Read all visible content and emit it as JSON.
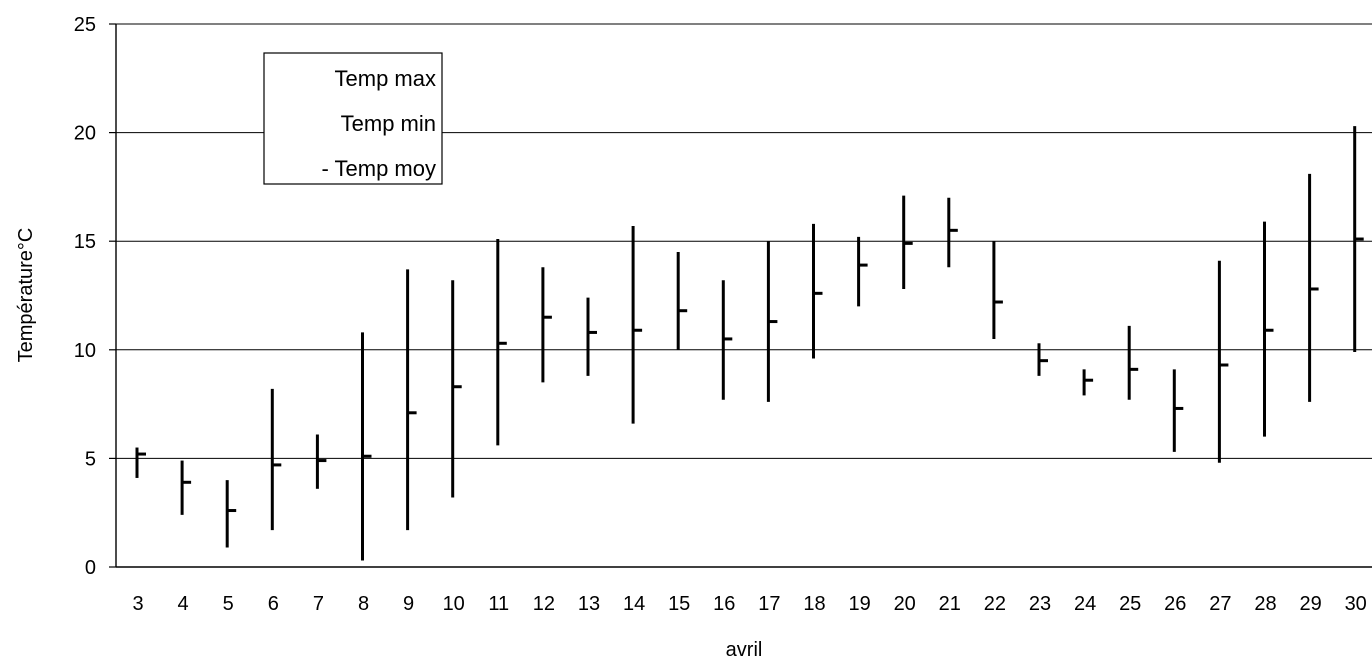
{
  "chart_data": {
    "type": "hi-lo-close",
    "xlabel": "avril",
    "ylabel": "Température°C",
    "ylim": [
      0,
      25
    ],
    "y_ticks": [
      "0",
      "5",
      "10",
      "15",
      "20",
      "25"
    ],
    "grid": "horizontal",
    "legend": {
      "placement": "top-left",
      "entries": [
        {
          "key": "max",
          "label": "Temp max"
        },
        {
          "key": "min",
          "label": "Temp min"
        },
        {
          "key": "moy",
          "label": "- Temp moy"
        }
      ]
    },
    "categories": [
      "3",
      "4",
      "5",
      "6",
      "7",
      "8",
      "9",
      "10",
      "11",
      "12",
      "13",
      "14",
      "15",
      "16",
      "17",
      "18",
      "19",
      "20",
      "21",
      "22",
      "23",
      "24",
      "25",
      "26",
      "27",
      "28",
      "29",
      "30"
    ],
    "series": [
      {
        "name": "Temp max",
        "values": [
          5.5,
          4.9,
          4.0,
          8.2,
          6.1,
          10.8,
          13.7,
          13.2,
          15.1,
          13.8,
          12.4,
          15.7,
          14.5,
          13.2,
          15.0,
          15.8,
          15.2,
          17.1,
          17.0,
          15.0,
          10.3,
          9.1,
          11.1,
          9.1,
          14.1,
          15.9,
          18.1,
          20.3
        ]
      },
      {
        "name": "Temp min",
        "values": [
          4.1,
          2.4,
          0.9,
          1.7,
          3.6,
          0.3,
          1.7,
          3.2,
          5.6,
          8.5,
          8.8,
          6.6,
          10.0,
          7.7,
          7.6,
          9.6,
          12.0,
          12.8,
          13.8,
          10.5,
          8.8,
          7.9,
          7.7,
          5.3,
          4.8,
          6.0,
          7.6,
          9.9
        ]
      },
      {
        "name": "Temp moy",
        "values": [
          5.2,
          3.9,
          2.6,
          4.7,
          4.9,
          5.1,
          7.1,
          8.3,
          10.3,
          11.5,
          10.8,
          10.9,
          11.8,
          10.5,
          11.3,
          12.6,
          13.9,
          14.9,
          15.5,
          12.2,
          9.5,
          8.6,
          9.1,
          7.3,
          9.3,
          10.9,
          12.8,
          15.1
        ]
      }
    ]
  }
}
